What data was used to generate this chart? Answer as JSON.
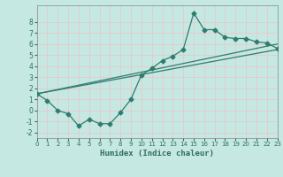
{
  "title": "",
  "xlabel": "Humidex (Indice chaleur)",
  "ylabel": "",
  "xlim": [
    0,
    23
  ],
  "ylim": [
    -2.5,
    9.5
  ],
  "yticks": [
    -2,
    -1,
    0,
    1,
    2,
    3,
    4,
    5,
    6,
    7,
    8
  ],
  "xticks": [
    0,
    1,
    2,
    3,
    4,
    5,
    6,
    7,
    8,
    9,
    10,
    11,
    12,
    13,
    14,
    15,
    16,
    17,
    18,
    19,
    20,
    21,
    22,
    23
  ],
  "background_color": "#c5e8e2",
  "grid_color": "#e8c8c8",
  "line_color": "#2e7d6e",
  "line1_x": [
    0,
    23
  ],
  "line1_y": [
    1.5,
    6.0
  ],
  "line2_x": [
    0,
    23
  ],
  "line2_y": [
    1.5,
    5.5
  ],
  "line3_x": [
    0,
    1,
    2,
    3,
    4,
    5,
    6,
    7,
    8,
    9,
    10,
    11,
    12,
    13,
    14,
    15,
    16,
    17,
    18,
    19,
    20,
    21,
    22,
    23
  ],
  "line3_y": [
    1.5,
    0.9,
    0.0,
    -0.3,
    -1.4,
    -0.8,
    -1.2,
    -1.2,
    -0.2,
    1.0,
    3.2,
    3.8,
    4.5,
    4.9,
    5.5,
    8.8,
    7.3,
    7.3,
    6.6,
    6.5,
    6.5,
    6.2,
    6.1,
    5.6
  ]
}
